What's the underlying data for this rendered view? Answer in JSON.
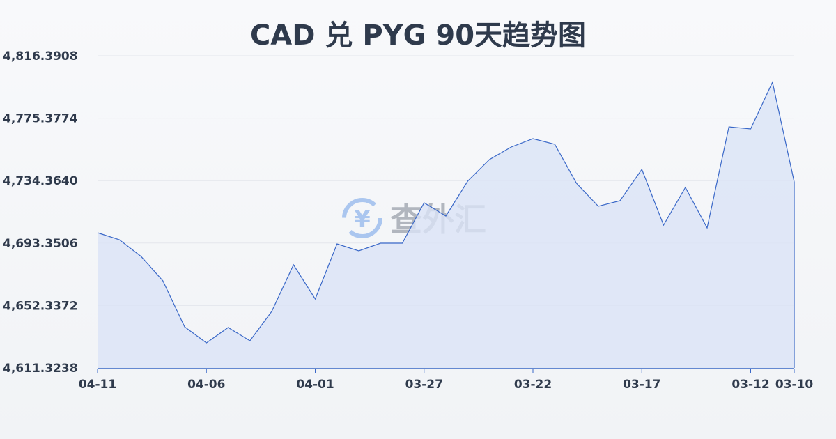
{
  "chart_data": {
    "type": "area",
    "title": "CAD 兑 PYG 90天趋势图",
    "xlabel": "",
    "ylabel": "",
    "ylim": [
      4611.3238,
      4816.3908
    ],
    "yticks": [
      "4,611.3238",
      "4,652.3372",
      "4,693.3506",
      "4,734.3640",
      "4,775.3774",
      "4,816.3908"
    ],
    "xticks": [
      "04-11",
      "04-06",
      "04-01",
      "03-27",
      "03-22",
      "03-17",
      "03-12",
      "03-10"
    ],
    "grid": true,
    "colors": {
      "line": "#3a68c8",
      "fill": "#dbe4f6"
    },
    "x": [
      "04-11",
      "04-10",
      "04-09",
      "04-08",
      "04-07",
      "04-06",
      "04-05",
      "04-04",
      "04-03",
      "04-02",
      "04-01",
      "03-31",
      "03-30",
      "03-29",
      "03-28",
      "03-27",
      "03-26",
      "03-25",
      "03-24",
      "03-23",
      "03-22",
      "03-21",
      "03-20",
      "03-19",
      "03-18",
      "03-17",
      "03-16",
      "03-15",
      "03-14",
      "03-13",
      "03-12",
      "03-11",
      "03-10"
    ],
    "values": [
      4700.12,
      4695.55,
      4684.56,
      4668.54,
      4638.33,
      4627.8,
      4637.87,
      4629.18,
      4648.4,
      4679.07,
      4656.64,
      4692.8,
      4688.22,
      4693.26,
      4693.26,
      4719.81,
      4711.11,
      4733.99,
      4748.19,
      4756.43,
      4761.92,
      4758.26,
      4732.62,
      4717.52,
      4721.18,
      4741.78,
      4705.16,
      4729.88,
      4703.33,
      4769.7,
      4768.33,
      4799.0,
      4733.54
    ]
  },
  "watermark": {
    "text": "查外汇",
    "icon": "yen-exchange-icon"
  }
}
